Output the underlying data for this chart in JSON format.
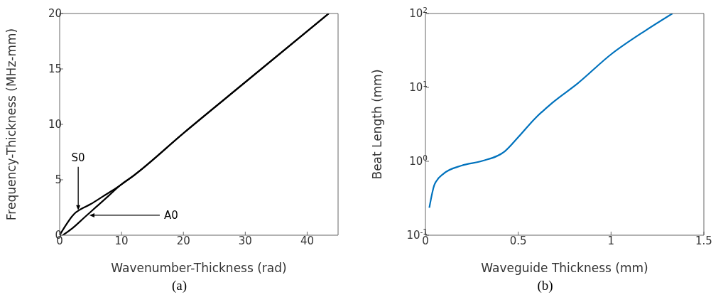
{
  "chart_data": [
    {
      "type": "line",
      "title": "(a)",
      "xlabel": "Wavenumber-Thickness (rad)",
      "ylabel": "Frequency-Thickness (MHz-mm)",
      "xlim": [
        0,
        45
      ],
      "xticks": [
        0,
        10,
        20,
        30,
        40
      ],
      "ylim": [
        0,
        20
      ],
      "yticks": [
        0,
        5,
        10,
        15,
        20
      ],
      "grid": false,
      "legend": false,
      "marker": "none",
      "line_style": "solid",
      "series": [
        {
          "color": "#000000",
          "x": [
            0,
            1,
            2,
            2.5,
            3,
            5,
            7,
            9,
            12,
            20,
            30,
            43.5
          ],
          "values": [
            0,
            0.9,
            1.7,
            2.0,
            2.2,
            2.8,
            3.5,
            4.2,
            5.4,
            9.2,
            13.8,
            20
          ]
        },
        {
          "color": "#000000",
          "x": [
            0.5,
            2,
            4,
            6,
            8,
            10,
            12,
            20,
            30,
            43.5
          ],
          "values": [
            0,
            0.6,
            1.6,
            2.6,
            3.6,
            4.6,
            5.4,
            9.2,
            13.8,
            20
          ]
        }
      ],
      "annotations": [
        {
          "text": "S0",
          "x": 3,
          "y": 2.2
        },
        {
          "text": "A0",
          "x": 4.7,
          "y": 1.8
        }
      ]
    },
    {
      "type": "line",
      "title": "(b)",
      "xlabel": "Waveguide Thickness (mm)",
      "ylabel": "Beat Length (mm)",
      "log": "y",
      "xlim": [
        0,
        1.5
      ],
      "xticks": [
        0,
        0.5,
        1,
        1.5
      ],
      "ylim": [
        0.1,
        100
      ],
      "yticks": [
        {
          "value": 0.1,
          "label": "10$^{-1}$"
        },
        {
          "value": 1,
          "label": "10$^{0}$"
        },
        {
          "value": 10,
          "label": "10$^{1}$"
        },
        {
          "value": 100,
          "label": "10$^{2}$"
        }
      ],
      "grid": false,
      "legend": false,
      "marker": "none",
      "line_style": "solid",
      "series": [
        {
          "color": "#0072bd",
          "x": [
            0.021,
            0.049,
            0.098,
            0.195,
            0.305,
            0.427,
            0.5,
            0.586,
            0.684,
            0.818,
            1.0,
            1.185,
            1.331
          ],
          "values": [
            0.235,
            0.485,
            0.68,
            0.875,
            1.01,
            1.36,
            2.12,
            3.7,
            6.2,
            11.2,
            28,
            58.7,
            100
          ]
        }
      ]
    }
  ]
}
